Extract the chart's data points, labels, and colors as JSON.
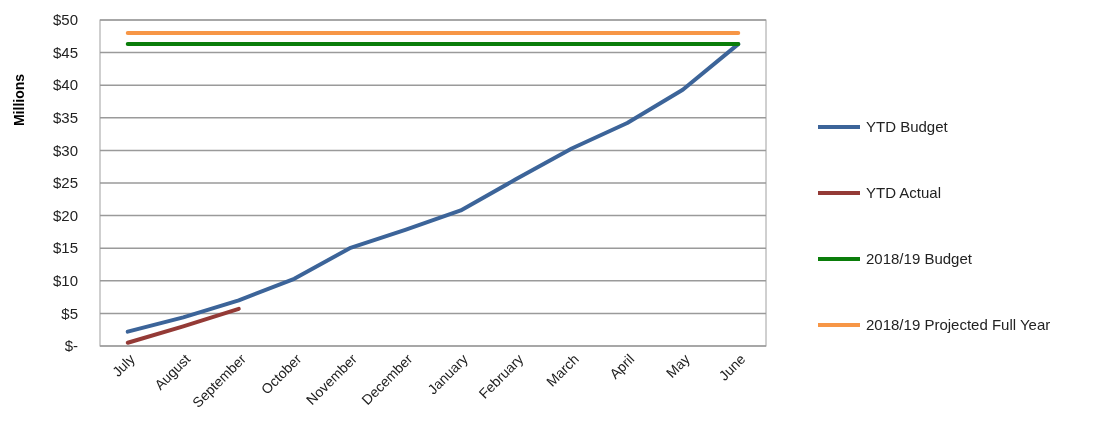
{
  "chart_data": {
    "type": "line",
    "ylabel": "Millions",
    "categories": [
      "July",
      "August",
      "September",
      "October",
      "November",
      "December",
      "January",
      "February",
      "March",
      "April",
      "May",
      "June"
    ],
    "series": [
      {
        "name": "YTD Budget",
        "color": "#3c6499",
        "values": [
          2.2,
          4.4,
          7.0,
          10.3,
          15.0,
          17.8,
          20.8,
          25.6,
          30.3,
          34.2,
          39.3,
          46.3
        ]
      },
      {
        "name": "YTD Actual",
        "color": "#943a36",
        "values": [
          0.5,
          3.0,
          5.7,
          null,
          null,
          null,
          null,
          null,
          null,
          null,
          null,
          null
        ]
      },
      {
        "name": "2018/19 Budget",
        "color": "#0a7d0a",
        "values": [
          46.3,
          46.3,
          46.3,
          46.3,
          46.3,
          46.3,
          46.3,
          46.3,
          46.3,
          46.3,
          46.3,
          46.3
        ]
      },
      {
        "name": "2018/19 Projected Full Year",
        "color": "#f79646",
        "values": [
          48,
          48,
          48,
          48,
          48,
          48,
          48,
          48,
          48,
          48,
          48,
          48
        ]
      }
    ],
    "ylim": [
      0,
      50
    ],
    "yticks": [
      {
        "value": 0,
        "label": "$-"
      },
      {
        "value": 5,
        "label": "$5"
      },
      {
        "value": 10,
        "label": "$10"
      },
      {
        "value": 15,
        "label": "$15"
      },
      {
        "value": 20,
        "label": "$20"
      },
      {
        "value": 25,
        "label": "$25"
      },
      {
        "value": 30,
        "label": "$30"
      },
      {
        "value": 35,
        "label": "$35"
      },
      {
        "value": 40,
        "label": "$40"
      },
      {
        "value": 45,
        "label": "$45"
      },
      {
        "value": 50,
        "label": "$50"
      }
    ],
    "grid": "y",
    "legend": "right",
    "marker": "none",
    "line_style": "solid"
  }
}
